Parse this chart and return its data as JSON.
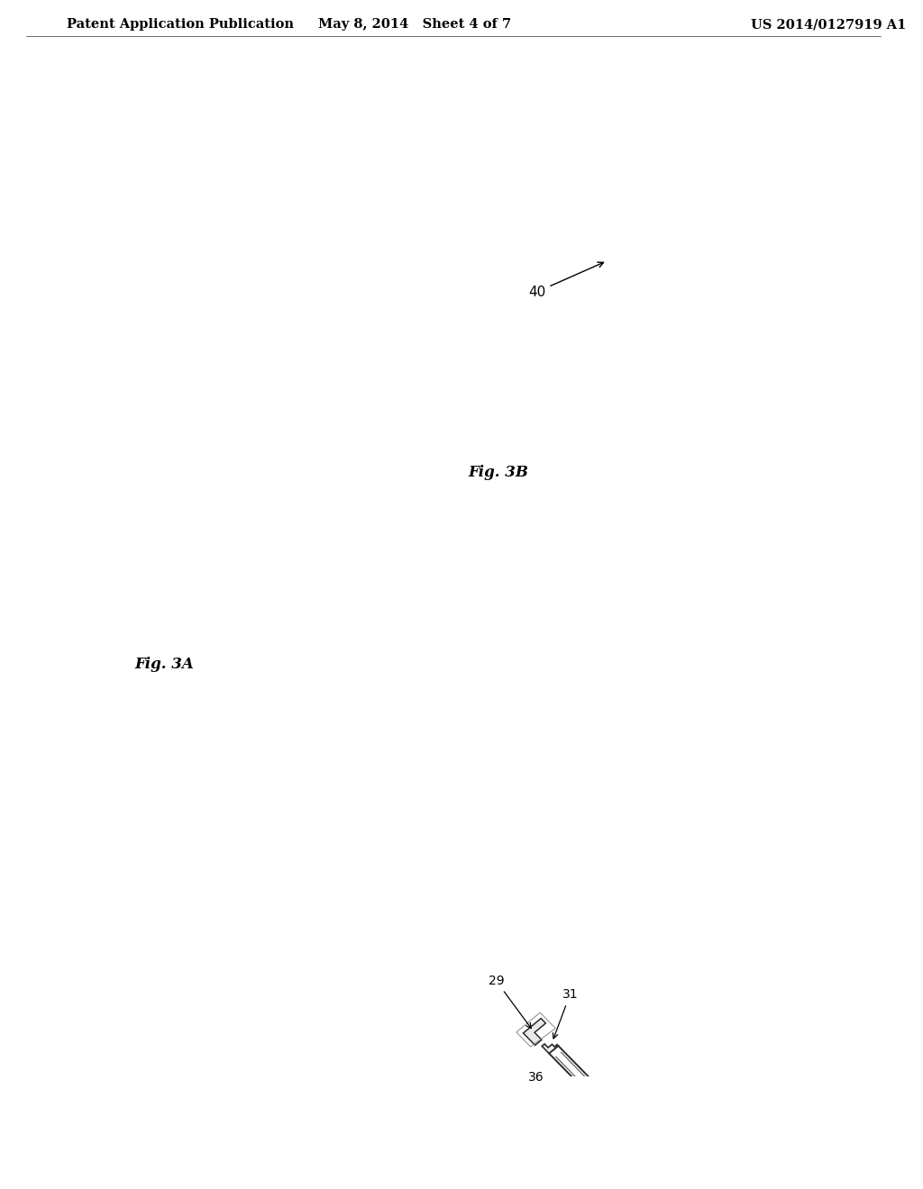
{
  "background_color": "#ffffff",
  "header_left": "Patent Application Publication",
  "header_center": "May 8, 2014   Sheet 4 of 7",
  "header_right": "US 2014/0127919 A1",
  "header_fontsize": 10.5,
  "fig_label_3A": "Fig. 3A",
  "fig_label_3B": "Fig. 3B",
  "line_color": "#2a2a2a",
  "annotation_color": "#000000",
  "lw_main": 1.3,
  "lw_thin": 0.8,
  "lw_thick": 1.8
}
